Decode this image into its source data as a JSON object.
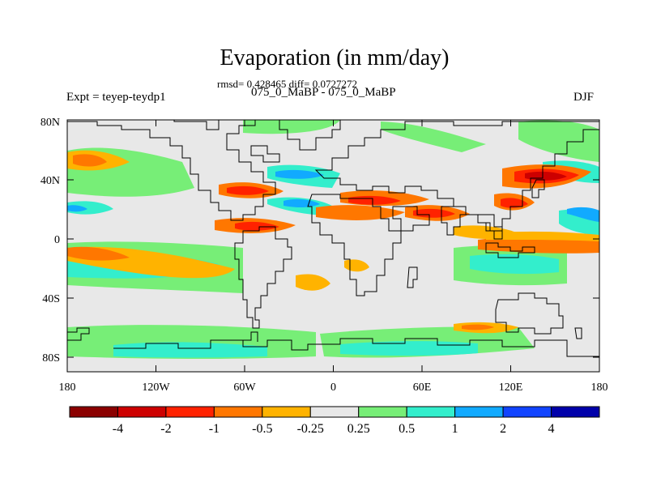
{
  "title": "Evaporation (in mm/day)",
  "stats": "rmsd= 0.428465 diff= 0.0727272",
  "subtitle": "075_0_MaBP - 075_0_MaBP",
  "expt": "Expt = teyep-teydp1",
  "season": "DJF",
  "y_ticks": [
    "80N",
    "40N",
    "0",
    "40S",
    "80S"
  ],
  "x_ticks": [
    "180",
    "120W",
    "60W",
    "0",
    "60E",
    "120E",
    "180"
  ],
  "colorbar": {
    "colors": [
      "#8b0000",
      "#cd0000",
      "#ff2200",
      "#ff7700",
      "#ffb300",
      "#e8e8e8",
      "#77ee77",
      "#33eecc",
      "#11aaff",
      "#1144ff",
      "#0000aa"
    ],
    "labels": [
      "-4",
      "-2",
      "-1",
      "-0.5",
      "-0.25",
      "0.25",
      "0.5",
      "1",
      "2",
      "4"
    ]
  },
  "map_colors": {
    "neutral": "#e8e8e8",
    "green": "#77ee77",
    "cyan": "#33eecc",
    "lightblue": "#11aaff",
    "blue": "#1144ff",
    "yellow": "#ffb300",
    "orange": "#ff7700",
    "red": "#ff2200",
    "darkred": "#cd0000"
  }
}
